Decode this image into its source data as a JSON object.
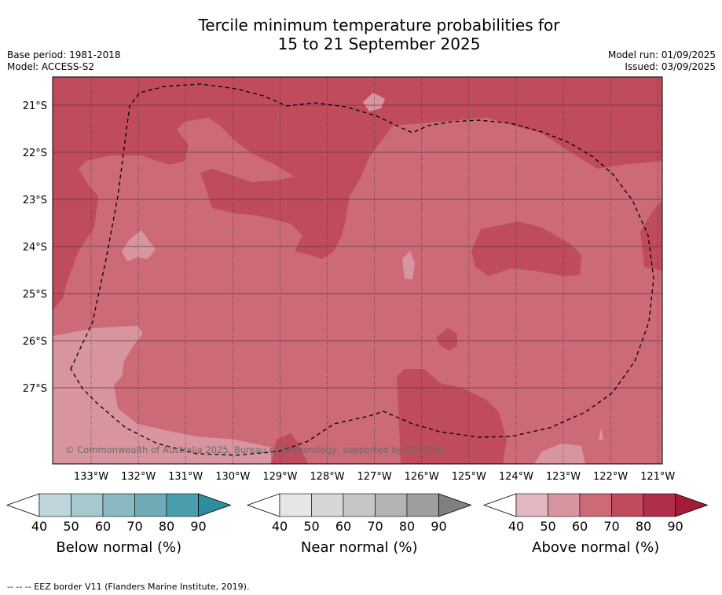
{
  "header": {
    "title_line1": "Tercile minimum temperature probabilities for",
    "title_line2": "15 to 21 September 2025",
    "base_period": "Base period: 1981-2018",
    "model": "Model: ACCESS-S2",
    "model_run": "Model run: 01/09/2025",
    "issued": "Issued: 03/09/2025"
  },
  "chart_data": {
    "type": "heatmap",
    "title": "Tercile minimum temperature probabilities for 15 to 21 September 2025",
    "x_ticks": [
      "133°W",
      "132°W",
      "131°W",
      "130°W",
      "129°W",
      "128°W",
      "127°W",
      "126°W",
      "125°W",
      "124°W",
      "123°W",
      "122°W",
      "121°W"
    ],
    "y_ticks": [
      "21°S",
      "22°S",
      "23°S",
      "24°S",
      "25°S",
      "26°S",
      "27°S"
    ],
    "dominant_category": "Above normal",
    "probability_range_percent": [
      40,
      90
    ],
    "credit": "© Commonwealth of Australia 2025, Bureau of Meteorology, supported by COSPPac",
    "colorbars": [
      {
        "label": "Below normal (%)",
        "ticks": [
          "40",
          "50",
          "60",
          "70",
          "80",
          "90"
        ],
        "colors": [
          "#ffffff",
          "#bdd5db",
          "#a6c8cf",
          "#8bb9c3",
          "#6fabb7",
          "#4a9dac",
          "#2d8ea0"
        ]
      },
      {
        "label": "Near normal (%)",
        "ticks": [
          "40",
          "50",
          "60",
          "70",
          "80",
          "90"
        ],
        "colors": [
          "#ffffff",
          "#e6e6e6",
          "#d6d6d6",
          "#c6c6c6",
          "#b3b3b3",
          "#9e9e9e",
          "#808080"
        ]
      },
      {
        "label": "Above normal (%)",
        "ticks": [
          "40",
          "50",
          "60",
          "70",
          "80",
          "90"
        ],
        "colors": [
          "#ffffff",
          "#e3b7bf",
          "#d9959f",
          "#cc6a77",
          "#c04b5c",
          "#b02e48",
          "#a51c3a"
        ]
      }
    ]
  },
  "footer": {
    "eez_note": "--  --  -- EEZ border V11 (Flanders Marine Institute, 2019)."
  }
}
